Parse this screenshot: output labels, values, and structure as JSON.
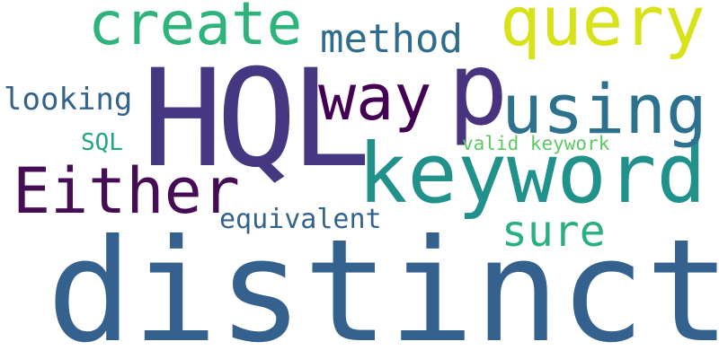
{
  "words": [
    {
      "text": "distinct",
      "color": "#34618d"
    },
    {
      "text": "HQL",
      "color": "#453781"
    },
    {
      "text": "keyword",
      "color": "#21918c"
    },
    {
      "text": "p",
      "color": "#48337e"
    },
    {
      "text": "Either",
      "color": "#450d54"
    },
    {
      "text": "create",
      "color": "#2eb37c"
    },
    {
      "text": "query",
      "color": "#d8e219"
    },
    {
      "text": "using",
      "color": "#2c728e"
    },
    {
      "text": "way",
      "color": "#440154"
    },
    {
      "text": "method",
      "color": "#2f6c8e"
    },
    {
      "text": "sure",
      "color": "#2ab07f"
    },
    {
      "text": "looking",
      "color": "#33638d"
    },
    {
      "text": "equivalent",
      "color": "#33638d"
    },
    {
      "text": "SQL",
      "color": "#21a585"
    },
    {
      "text": "valid keywork",
      "color": "#5ec962"
    }
  ]
}
